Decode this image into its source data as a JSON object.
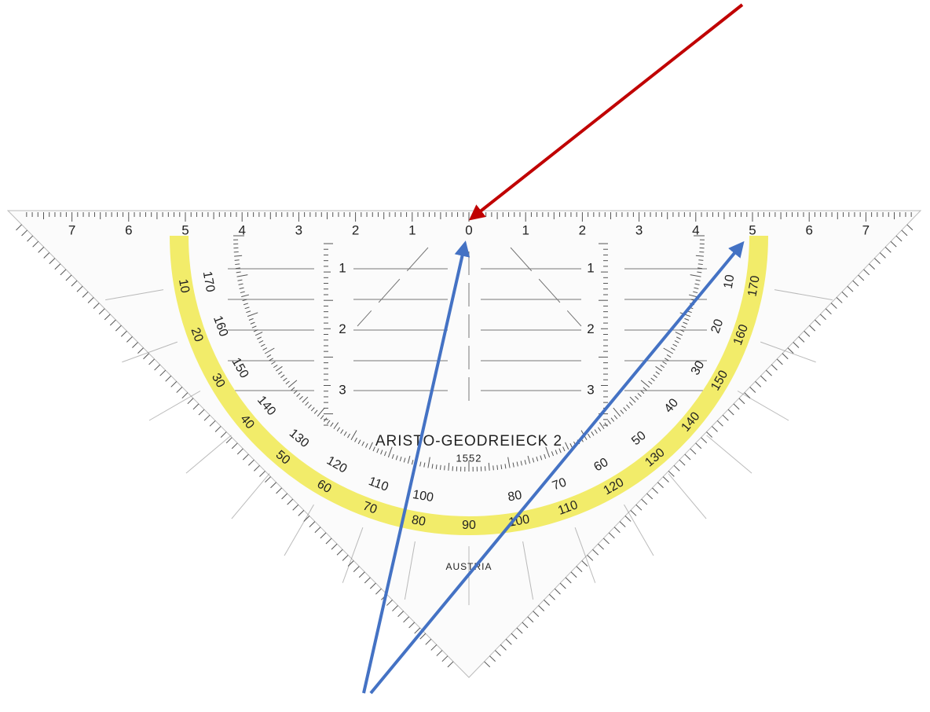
{
  "ruler": {
    "top_labels": [
      "7",
      "6",
      "5",
      "4",
      "3",
      "2",
      "1",
      "0",
      "1",
      "2",
      "3",
      "4",
      "5",
      "6",
      "7"
    ],
    "left_depth_labels": [
      "1",
      "2",
      "3"
    ],
    "right_depth_labels": [
      "1",
      "2",
      "3"
    ]
  },
  "protractor": {
    "outer_labels": [
      "10",
      "20",
      "30",
      "40",
      "50",
      "60",
      "70",
      "80",
      "90",
      "100",
      "110",
      "120",
      "130",
      "140",
      "150",
      "160",
      "170"
    ],
    "inner_labels": [
      "170",
      "160",
      "150",
      "140",
      "130",
      "120",
      "110",
      "100",
      "80",
      "70",
      "60",
      "50",
      "40",
      "30",
      "20",
      "10"
    ]
  },
  "imprint": {
    "brand": "ARISTO-GEODREIECK 2",
    "model": "1552",
    "origin": "AUSTRIA"
  }
}
